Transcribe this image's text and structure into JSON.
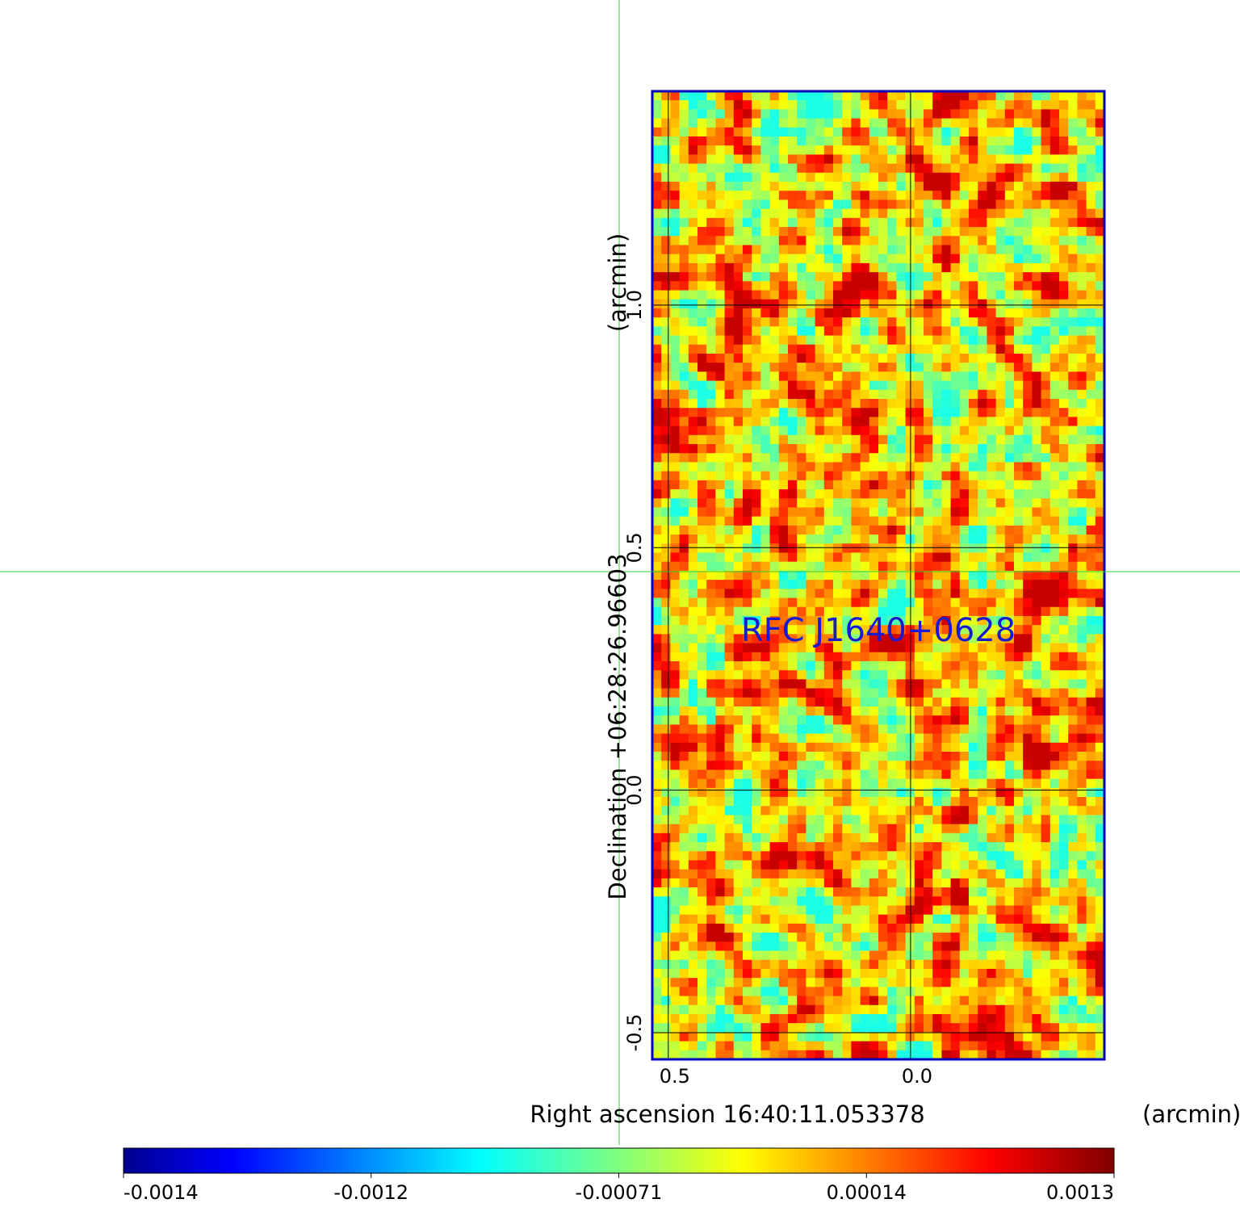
{
  "chart_data": {
    "type": "image",
    "title": "RFC J1640+0628",
    "xlabel": "Right ascension  16:40:11.053378",
    "xunit": "(arcmin)",
    "ylabel": "Declination  +06:28:26.96603",
    "yunit": "(arcmin)",
    "xlim": [
      0.533,
      -0.4
    ],
    "xticks": [
      0.5,
      {
        "value": 0,
        "label": "0.0"
      }
    ],
    "ylim": [
      -0.555,
      1.441
    ],
    "yticks": [
      {
        "value": 1,
        "label": "1.0"
      },
      0.5,
      {
        "value": 0,
        "label": "0.0"
      },
      -0.5
    ],
    "grid": true,
    "colormap": "jet",
    "colorbar_ticks": [
      -0.0014,
      -0.0012,
      -0.00071,
      0.00014,
      0.0013
    ]
  }
}
